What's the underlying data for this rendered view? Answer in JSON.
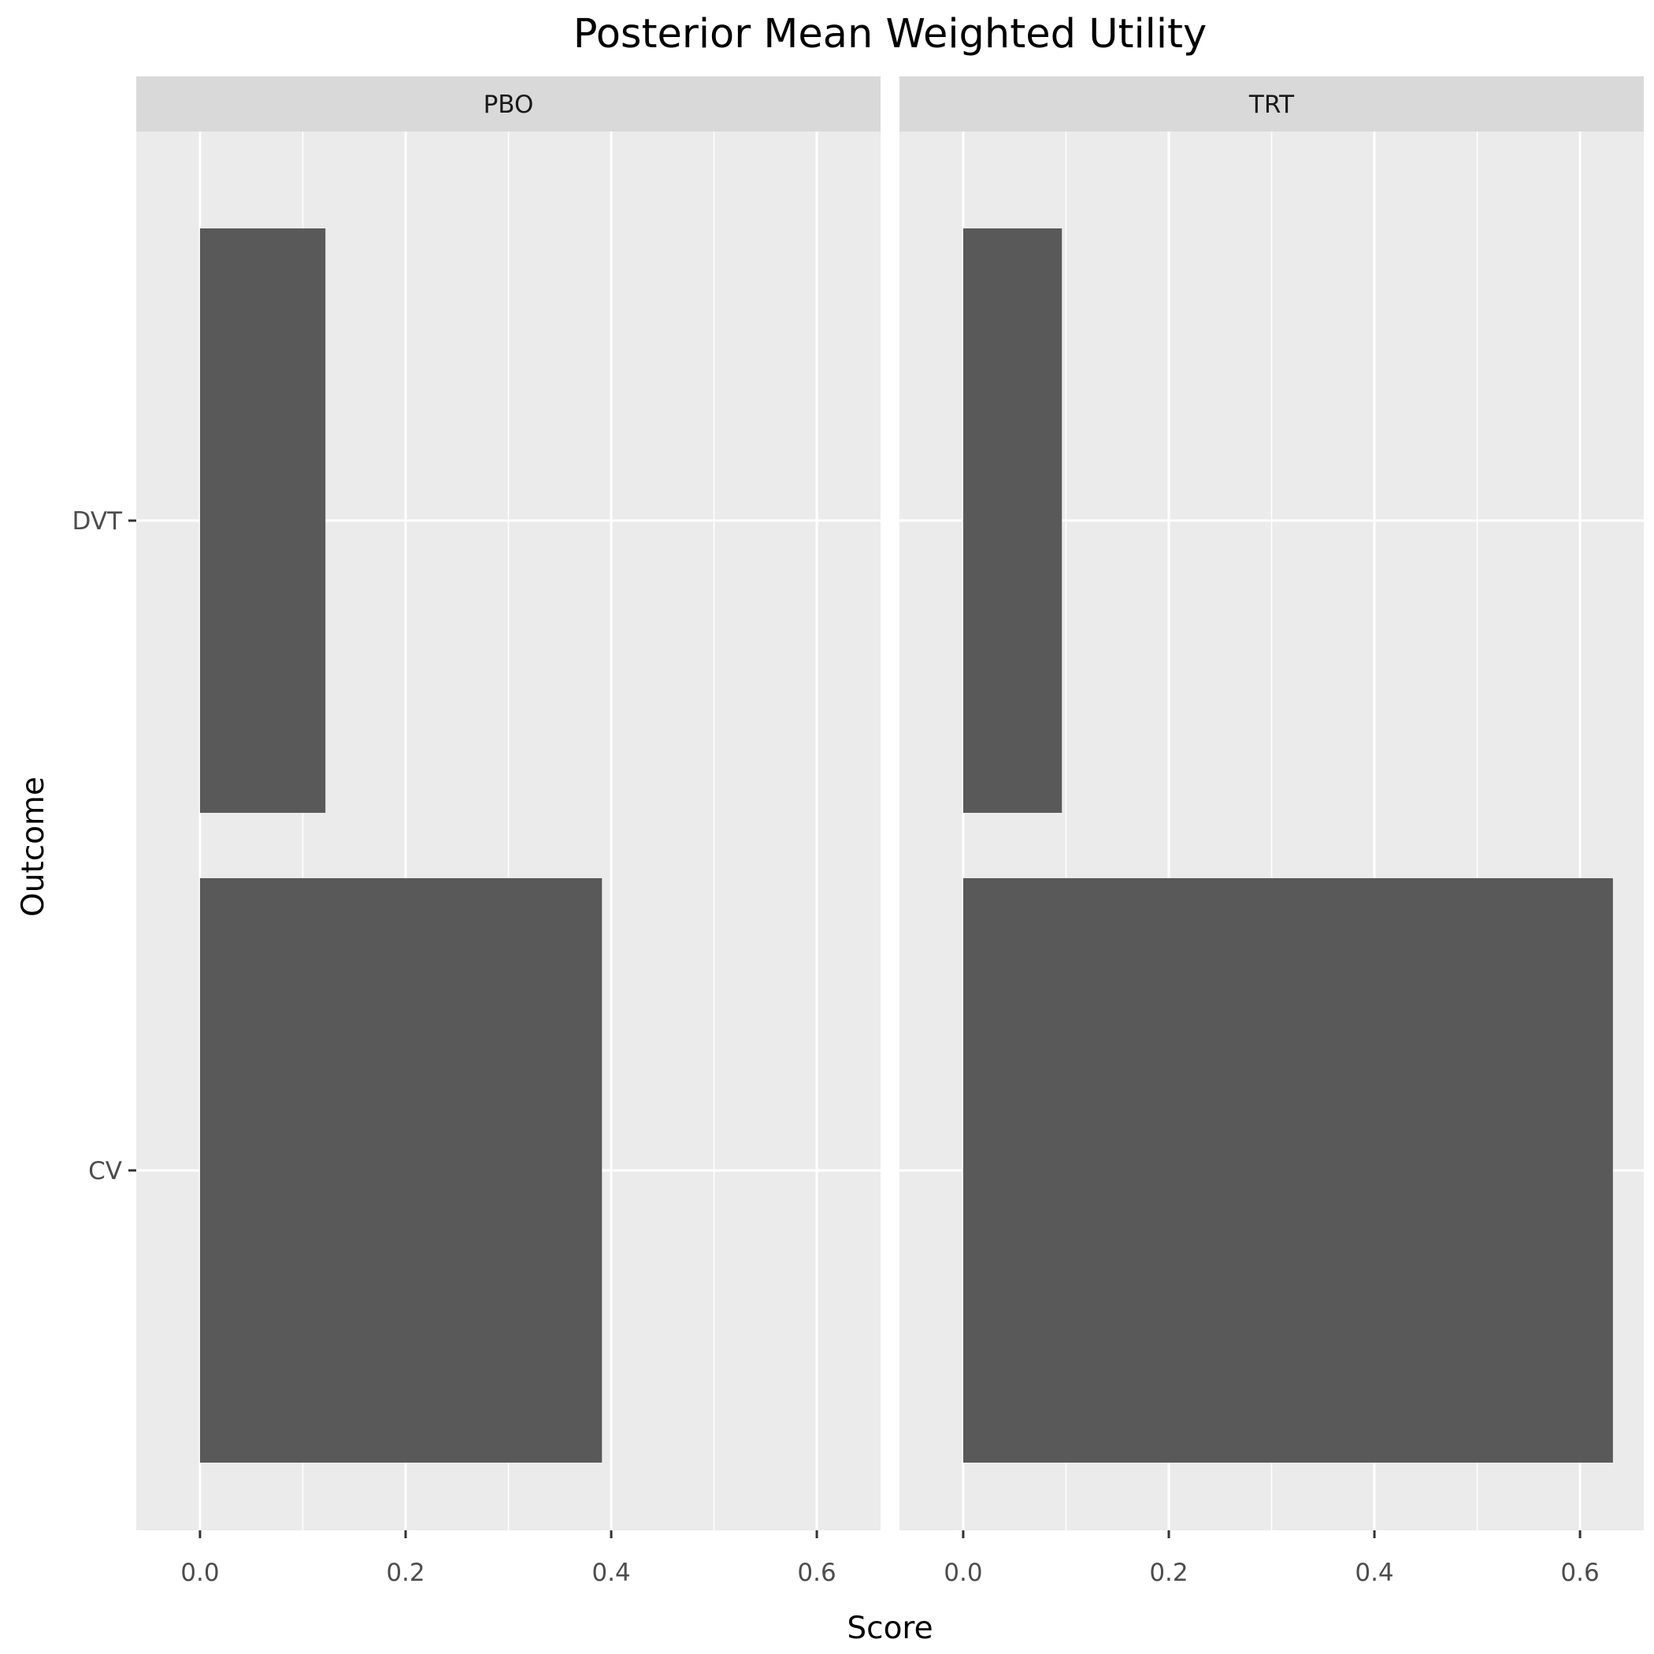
{
  "chart_data": {
    "type": "bar",
    "orientation": "horizontal",
    "title": "Posterior Mean Weighted Utility",
    "xlabel": "Score",
    "ylabel": "Outcome",
    "categories": [
      "DVT",
      "CV"
    ],
    "x_ticks": [
      "0.0",
      "0.2",
      "0.4",
      "0.6"
    ],
    "xlim": [
      -0.062,
      0.662
    ],
    "grid": true,
    "bar_color": "#595959",
    "panel_background": "#ebebeb",
    "strip_background": "#d9d9d9",
    "facets": [
      {
        "label": "PBO",
        "values": [
          0.122,
          0.391
        ]
      },
      {
        "label": "TRT",
        "values": [
          0.096,
          0.632
        ]
      }
    ]
  }
}
